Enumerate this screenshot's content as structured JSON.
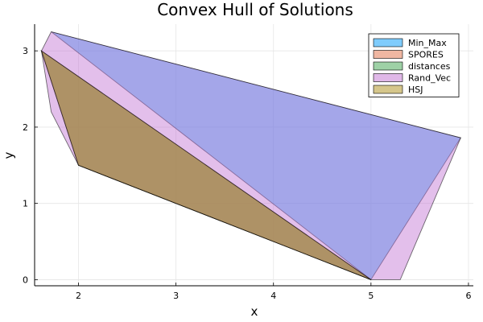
{
  "chart_data": {
    "type": "area",
    "title": "Convex Hull of Solutions",
    "xlabel": "x",
    "ylabel": "y",
    "xlim": [
      1.55,
      6.05
    ],
    "ylim": [
      -0.08,
      3.35
    ],
    "xticks": [
      2,
      3,
      4,
      5,
      6
    ],
    "yticks": [
      0,
      1,
      2,
      3
    ],
    "grid": true,
    "legend_position": "top-right",
    "series": [
      {
        "name": "Min_Max",
        "color": "#009af9",
        "polygon": [
          [
            1.72,
            3.25
          ],
          [
            5.92,
            1.86
          ],
          [
            5.0,
            0.0
          ]
        ]
      },
      {
        "name": "SPORES",
        "color": "#e26f46",
        "polygon": [
          [
            1.62,
            3.0
          ],
          [
            2.0,
            1.5
          ],
          [
            5.0,
            0.0
          ]
        ]
      },
      {
        "name": "distances",
        "color": "#3da44d",
        "polygon": [
          [
            1.62,
            3.0
          ],
          [
            2.0,
            1.5
          ],
          [
            5.0,
            0.0
          ]
        ]
      },
      {
        "name": "Rand_Vec",
        "color": "#c271d2",
        "polygon": [
          [
            1.72,
            3.25
          ],
          [
            1.62,
            3.0
          ],
          [
            1.72,
            2.2
          ],
          [
            2.0,
            1.5
          ],
          [
            5.0,
            0.0
          ],
          [
            5.3,
            0.0
          ],
          [
            5.92,
            1.86
          ]
        ]
      },
      {
        "name": "HSJ",
        "color": "#ac8d18",
        "polygon": [
          [
            1.62,
            3.0
          ],
          [
            2.0,
            1.5
          ],
          [
            5.0,
            0.0
          ]
        ]
      }
    ]
  }
}
